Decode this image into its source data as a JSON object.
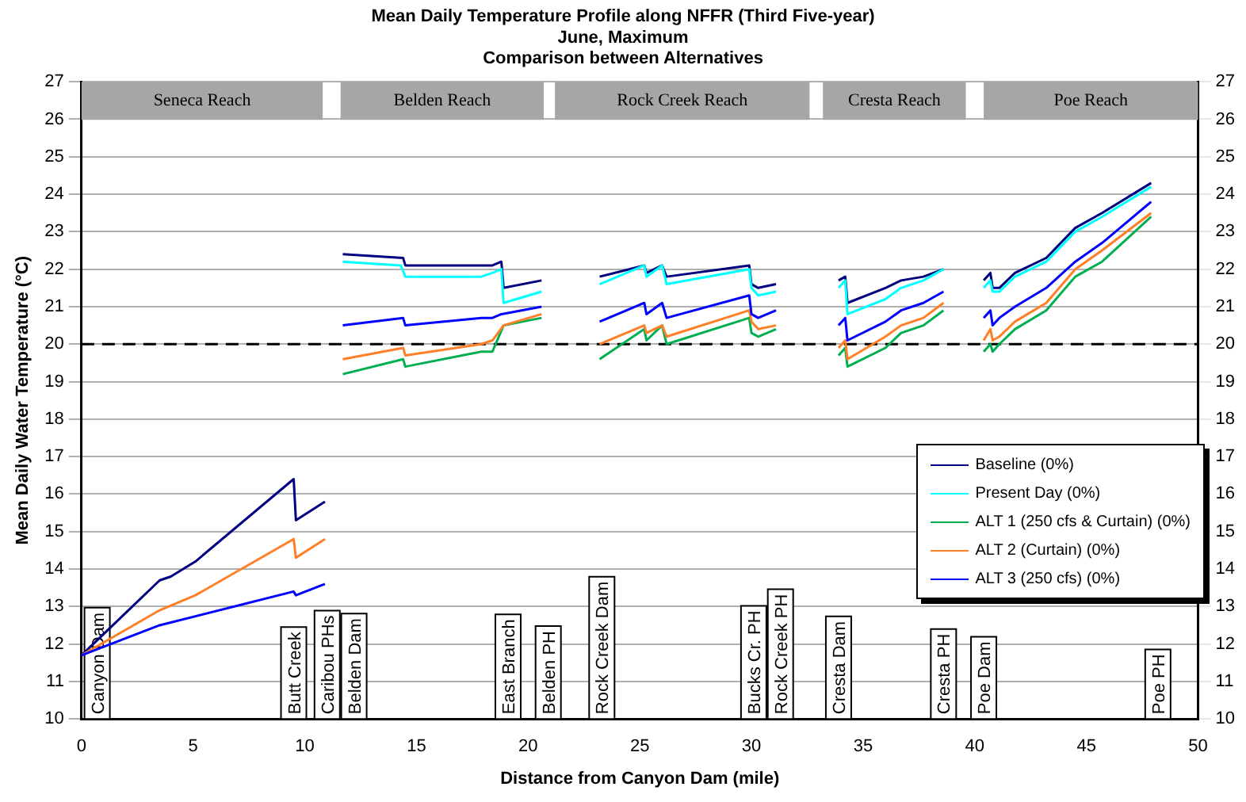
{
  "chart_data": {
    "type": "line",
    "title": "Mean Daily Temperature Profile along NFFR (Third Five-year)",
    "subtitle": "June, Maximum\nComparison between Alternatives",
    "xlabel": "Distance from Canyon Dam (mile)",
    "ylabel": "Mean Daily Water Temperature (°C)",
    "xlim": [
      0,
      50
    ],
    "xticks": [
      0,
      5,
      10,
      15,
      20,
      25,
      30,
      35,
      40,
      45,
      50
    ],
    "ylim": [
      10,
      27
    ],
    "yticks": [
      10,
      11,
      12,
      13,
      14,
      15,
      16,
      17,
      18,
      19,
      20,
      21,
      22,
      23,
      24,
      25,
      26,
      27
    ],
    "y2lim": [
      10,
      27
    ],
    "y2ticks": [
      10,
      11,
      12,
      13,
      14,
      15,
      16,
      17,
      18,
      19,
      20,
      21,
      22,
      23,
      24,
      25,
      26,
      27
    ],
    "grid": "y",
    "legend": "right",
    "marker": "none",
    "line_style": "solid",
    "series": [
      {
        "name": "Baseline (0%)",
        "color": "#000080",
        "x": [
          0,
          3.5,
          4.0,
          5.1,
          9.5,
          9.6,
          10.9,
          11.2,
          11.7,
          14.4,
          14.5,
          17.9,
          18.4,
          18.8,
          18.9,
          20.6,
          22,
          23.2,
          25.2,
          25.3,
          26.0,
          26.2,
          29.9,
          30.0,
          30.3,
          31.1,
          32.5,
          33.9,
          34.2,
          34.3,
          36.0,
          36.7,
          37.7,
          38.6,
          39.5,
          40.4,
          40.7,
          40.8,
          41.1,
          41.8,
          43.2,
          44.5,
          45.7,
          47.9
        ],
        "values": [
          11.7,
          13.7,
          13.8,
          14.2,
          16.4,
          15.3,
          15.8,
          null,
          22.4,
          22.3,
          22.1,
          22.1,
          22.1,
          22.2,
          21.5,
          21.7,
          null,
          21.8,
          22.1,
          21.9,
          22.1,
          21.8,
          22.1,
          21.6,
          21.5,
          21.6,
          null,
          21.7,
          21.8,
          21.1,
          21.5,
          21.7,
          21.8,
          22.0,
          null,
          21.7,
          21.9,
          21.5,
          21.5,
          21.9,
          22.3,
          23.1,
          23.5,
          24.3
        ]
      },
      {
        "name": "Present Day (0%)",
        "color": "#00ffff",
        "x": [
          11.7,
          14.3,
          14.5,
          17.9,
          18.4,
          18.8,
          18.9,
          20.6,
          22,
          23.2,
          25.2,
          25.3,
          26.0,
          26.2,
          29.9,
          30.0,
          30.3,
          31.1,
          32.5,
          33.9,
          34.2,
          34.3,
          36.0,
          36.7,
          37.7,
          38.6,
          39.5,
          40.4,
          40.7,
          40.8,
          41.1,
          41.8,
          43.2,
          44.5,
          45.7,
          47.9
        ],
        "values": [
          22.2,
          22.1,
          21.8,
          21.8,
          21.9,
          22.0,
          21.1,
          21.4,
          null,
          21.6,
          22.1,
          21.8,
          22.1,
          21.6,
          22.0,
          21.5,
          21.3,
          21.4,
          null,
          21.5,
          21.7,
          20.8,
          21.2,
          21.5,
          21.7,
          22.0,
          null,
          21.5,
          21.7,
          21.4,
          21.4,
          21.8,
          22.2,
          23.0,
          23.4,
          24.2
        ]
      },
      {
        "name": "ALT 1 (250 cfs & Curtain) (0%)",
        "color": "#00b050",
        "x": [
          11.7,
          14.4,
          14.5,
          17.9,
          18.4,
          18.9,
          20.6,
          22,
          23.2,
          25.2,
          25.3,
          26.0,
          26.2,
          29.9,
          30.0,
          30.3,
          31.1,
          32.5,
          33.9,
          34.2,
          34.3,
          36.0,
          36.7,
          37.7,
          38.6,
          39.5,
          40.4,
          40.7,
          40.8,
          41.1,
          41.8,
          43.2,
          44.5,
          45.7,
          47.9
        ],
        "values": [
          19.2,
          19.6,
          19.4,
          19.8,
          19.8,
          20.5,
          20.7,
          null,
          19.6,
          20.4,
          20.1,
          20.5,
          20.0,
          20.7,
          20.3,
          20.2,
          20.4,
          null,
          19.7,
          19.9,
          19.4,
          19.9,
          20.3,
          20.5,
          20.9,
          null,
          19.8,
          20.0,
          19.8,
          20.0,
          20.4,
          20.9,
          21.8,
          22.2,
          23.4
        ]
      },
      {
        "name": "ALT 2 (Curtain) (0%)",
        "color": "#ff7f27",
        "x": [
          0,
          3.5,
          5.1,
          9.5,
          9.6,
          10.9,
          11.2,
          11.7,
          14.4,
          14.5,
          17.9,
          18.4,
          18.9,
          20.6,
          22,
          23.2,
          25.2,
          25.3,
          26.0,
          26.2,
          29.9,
          30.0,
          30.3,
          31.1,
          32.5,
          33.9,
          34.2,
          34.3,
          36.0,
          36.7,
          37.7,
          38.6,
          39.5,
          40.4,
          40.7,
          40.8,
          41.1,
          41.8,
          43.2,
          44.5,
          45.7,
          47.9
        ],
        "values": [
          11.7,
          12.9,
          13.3,
          14.8,
          14.3,
          14.8,
          null,
          19.6,
          19.9,
          19.7,
          20.0,
          20.1,
          20.5,
          20.8,
          null,
          20.0,
          20.5,
          20.3,
          20.5,
          20.2,
          20.9,
          20.6,
          20.4,
          20.5,
          null,
          19.9,
          20.1,
          19.6,
          20.2,
          20.5,
          20.7,
          21.1,
          null,
          20.1,
          20.4,
          20.1,
          20.2,
          20.6,
          21.1,
          22.0,
          22.5,
          23.5
        ]
      },
      {
        "name": "ALT 3 (250 cfs) (0%)",
        "color": "#0000ff",
        "x": [
          0,
          3.5,
          9.5,
          9.6,
          10.9,
          11.2,
          11.7,
          14.4,
          14.5,
          17.9,
          18.4,
          18.8,
          20.6,
          22,
          23.2,
          25.2,
          25.3,
          26.0,
          26.2,
          29.9,
          30.0,
          30.3,
          31.1,
          32.5,
          33.9,
          34.2,
          34.3,
          36.0,
          36.7,
          37.7,
          38.6,
          39.5,
          40.4,
          40.7,
          40.8,
          41.1,
          41.8,
          43.2,
          44.5,
          45.7,
          47.9
        ],
        "values": [
          11.7,
          12.5,
          13.4,
          13.3,
          13.6,
          null,
          20.5,
          20.7,
          20.5,
          20.7,
          20.7,
          20.8,
          21.0,
          null,
          20.6,
          21.1,
          20.8,
          21.1,
          20.7,
          21.3,
          20.8,
          20.7,
          20.9,
          null,
          20.5,
          20.7,
          20.1,
          20.6,
          20.9,
          21.1,
          21.4,
          null,
          20.7,
          20.9,
          20.5,
          20.7,
          21.0,
          21.5,
          22.2,
          22.7,
          23.8
        ]
      }
    ],
    "ref_lines": [
      {
        "axis": "y",
        "value": 20,
        "color": "#000000",
        "line_style": "dashed"
      }
    ],
    "bands": [
      {
        "axis": "x",
        "from": 0,
        "to": 10.8,
        "label": "Seneca Reach",
        "color": "#a6a6a6"
      },
      {
        "axis": "x",
        "from": 11.6,
        "to": 20.7,
        "label": "Belden Reach",
        "color": "#a6a6a6"
      },
      {
        "axis": "x",
        "from": 21.2,
        "to": 32.6,
        "label": "Rock Creek Reach",
        "color": "#a6a6a6"
      },
      {
        "axis": "x",
        "from": 33.2,
        "to": 39.6,
        "label": "Cresta Reach",
        "color": "#a6a6a6"
      },
      {
        "axis": "x",
        "from": 40.4,
        "to": 50,
        "label": "Poe Reach",
        "color": "#a6a6a6"
      }
    ],
    "annotations": [
      "Canyon Dam",
      "Butt Creek",
      "Caribou PHs",
      "Belden Dam",
      "East Branch",
      "Belden PH",
      "Rock Creek Dam",
      "Bucks Cr. PH",
      "Rock Creek PH",
      "Cresta Dam",
      "Cresta PH",
      "Poe Dam",
      "Poe PH"
    ]
  }
}
